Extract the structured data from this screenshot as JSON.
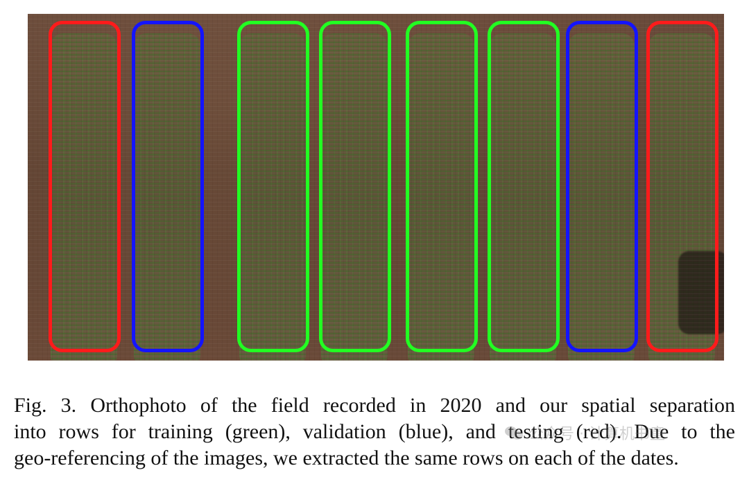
{
  "figure": {
    "caption_lines": [
      "Fig. 3.    Orthophoto of the field recorded in 2020 and our spatial separation",
      "into rows for training (green), validation (blue), and testing (red). Due to the",
      "geo-referencing of the images, we extracted the same rows on each of the dates."
    ],
    "split_colors": {
      "training": "#22ff22",
      "validation": "#1414ff",
      "testing": "#ff1b1b"
    },
    "row_splits": [
      "testing",
      "validation",
      "training",
      "training",
      "training",
      "training",
      "validation",
      "testing"
    ]
  },
  "watermark": {
    "icon": "wechat-icon",
    "text": "公众号 · 计算机书童"
  }
}
